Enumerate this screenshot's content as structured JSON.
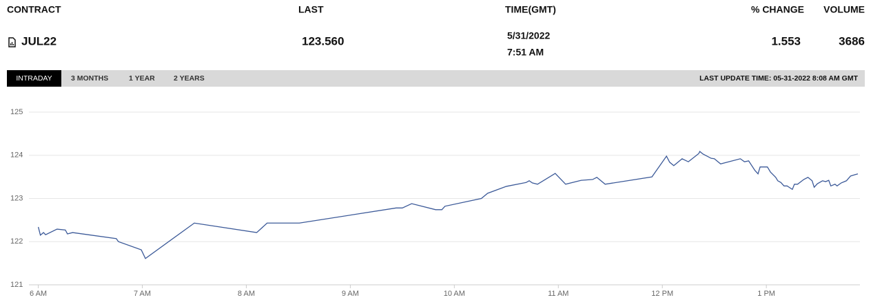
{
  "header": {
    "columns": [
      "CONTRACT",
      "LAST",
      "TIME(GMT)",
      "% CHANGE",
      "VOLUME"
    ]
  },
  "row": {
    "contract": "JUL22",
    "last": "123.560",
    "date": "5/31/2022",
    "time": "7:51 AM",
    "change": "1.553",
    "volume": "3686"
  },
  "tabs": [
    "INTRADAY",
    "3 MONTHS",
    "1 YEAR",
    "2 YEARS"
  ],
  "last_update": "LAST UPDATE TIME: 05-31-2022 8:08 AM GMT",
  "chart_data": {
    "type": "line",
    "x": [
      6.0,
      6.02,
      6.05,
      6.07,
      6.18,
      6.26,
      6.28,
      6.33,
      6.75,
      6.77,
      6.99,
      7.03,
      7.5,
      8.1,
      8.2,
      8.51,
      9.44,
      9.5,
      9.59,
      9.82,
      9.88,
      9.91,
      10.26,
      10.32,
      10.5,
      10.69,
      10.72,
      10.75,
      10.8,
      10.97,
      11.07,
      11.22,
      11.33,
      11.37,
      11.45,
      11.9,
      12.04,
      12.07,
      12.11,
      12.19,
      12.25,
      12.35,
      12.36,
      12.39,
      12.47,
      12.5,
      12.56,
      12.75,
      12.79,
      12.83,
      12.89,
      12.92,
      12.94,
      13.01,
      13.04,
      13.09,
      13.11,
      13.14,
      13.17,
      13.2,
      13.25,
      13.27,
      13.3,
      13.36,
      13.4,
      13.44,
      13.46,
      13.49,
      13.54,
      13.57,
      13.6,
      13.62,
      13.66,
      13.68,
      13.72,
      13.77,
      13.81,
      13.85,
      13.88
    ],
    "values": [
      122.34,
      122.15,
      122.21,
      122.16,
      122.29,
      122.27,
      122.18,
      122.21,
      122.07,
      122,
      121.81,
      121.61,
      122.43,
      122.21,
      122.43,
      122.43,
      122.78,
      122.78,
      122.88,
      122.74,
      122.74,
      122.82,
      123,
      123.12,
      123.28,
      123.37,
      123.41,
      123.36,
      123.33,
      123.58,
      123.33,
      123.42,
      123.44,
      123.49,
      123.33,
      123.5,
      123.98,
      123.84,
      123.76,
      123.92,
      123.85,
      124.04,
      124.09,
      124.03,
      123.93,
      123.92,
      123.8,
      123.92,
      123.85,
      123.87,
      123.65,
      123.57,
      123.73,
      123.73,
      123.61,
      123.49,
      123.41,
      123.37,
      123.29,
      123.29,
      123.21,
      123.33,
      123.33,
      123.44,
      123.49,
      123.41,
      123.26,
      123.34,
      123.41,
      123.39,
      123.42,
      123.29,
      123.33,
      123.29,
      123.36,
      123.41,
      123.52,
      123.55,
      123.57
    ],
    "color": "#3b5998",
    "xlim": [
      5.91,
      13.9
    ],
    "xticks": [
      {
        "value": 6,
        "label": "6 AM"
      },
      {
        "value": 7,
        "label": "7 AM"
      },
      {
        "value": 8,
        "label": "8 AM"
      },
      {
        "value": 9,
        "label": "9 AM"
      },
      {
        "value": 10,
        "label": "10 AM"
      },
      {
        "value": 11,
        "label": "11 AM"
      },
      {
        "value": 12,
        "label": "12 PM"
      },
      {
        "value": 13,
        "label": "1 PM"
      }
    ],
    "ylim": [
      121,
      125
    ],
    "yticks": [
      121,
      122,
      123,
      124,
      125
    ],
    "grid": true
  }
}
